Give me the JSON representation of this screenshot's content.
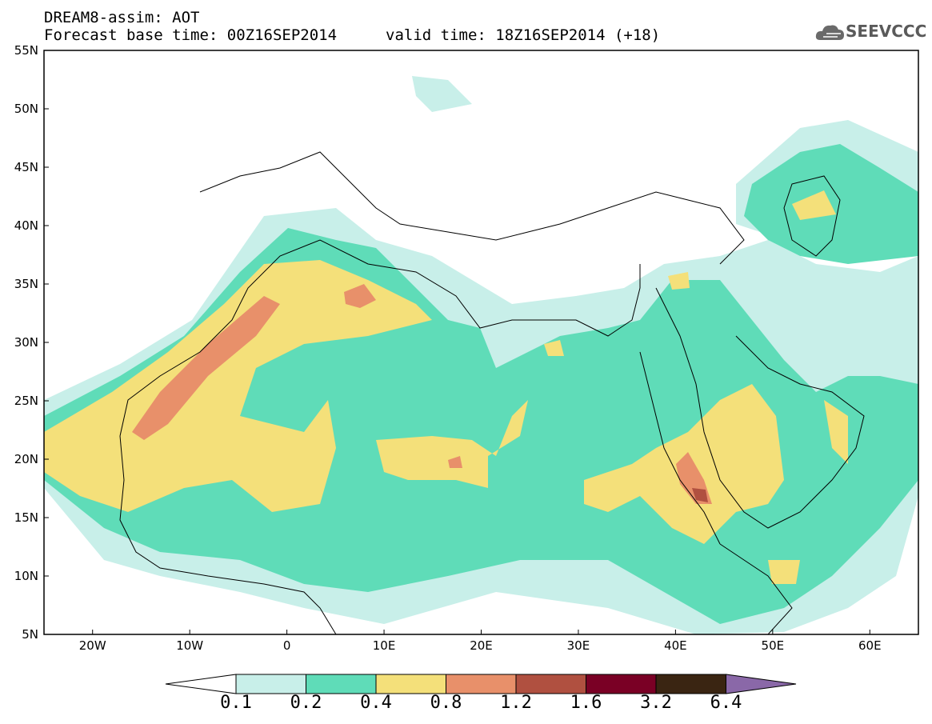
{
  "title_line1": "DREAM8-assim: AOT",
  "title_line2": "Forecast base time: 00Z16SEP2014",
  "valid_time": "valid time: 18Z16SEP2014 (+18)",
  "logo_text": "SEEVCCC",
  "latitude_labels": [
    "55N",
    "50N",
    "45N",
    "40N",
    "35N",
    "30N",
    "25N",
    "20N",
    "15N",
    "10N",
    "5N"
  ],
  "longitude_labels": [
    "20W",
    "10W",
    "0",
    "10E",
    "20E",
    "30E",
    "40E",
    "50E",
    "60E"
  ],
  "colorbar": {
    "labels": [
      "0.1",
      "0.2",
      "0.4",
      "0.8",
      "1.2",
      "1.6",
      "3.2",
      "6.4"
    ],
    "colors": [
      "#ffffff",
      "#c8efe9",
      "#5fdcb8",
      "#f4e07a",
      "#e8906a",
      "#b05040",
      "#7a0025",
      "#3a2512",
      "#8a68a8"
    ]
  },
  "palette": {
    "c02": "#c8efe9",
    "c04": "#5fdcb8",
    "c08": "#f4e07a",
    "c12": "#e8906a",
    "c16": "#b05040"
  }
}
